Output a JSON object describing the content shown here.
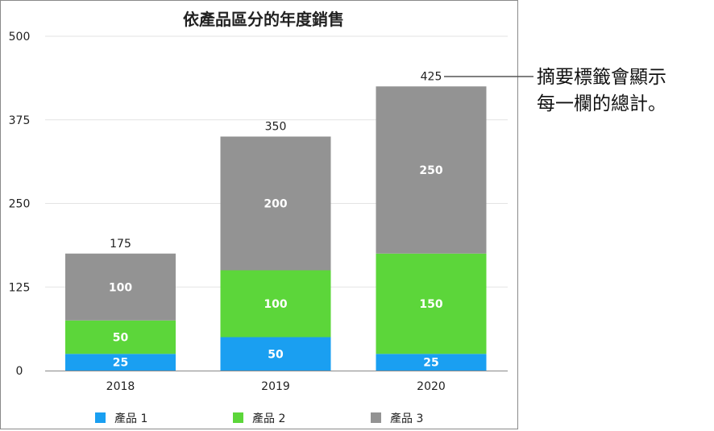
{
  "chart_data": {
    "type": "bar",
    "stacked": true,
    "title": "依產品區分的年度銷售",
    "xlabel": "",
    "ylabel": "",
    "categories": [
      "2018",
      "2019",
      "2020"
    ],
    "series": [
      {
        "name": "產品 1",
        "color": "#1a9ff1",
        "values": [
          25,
          50,
          25
        ]
      },
      {
        "name": "產品 2",
        "color": "#5cd63a",
        "values": [
          50,
          100,
          150
        ]
      },
      {
        "name": "產品 3",
        "color": "#939393",
        "values": [
          100,
          200,
          250
        ]
      }
    ],
    "totals": [
      175,
      350,
      425
    ],
    "ylim": [
      0,
      500
    ],
    "yticks": [
      "0",
      "125",
      "250",
      "375",
      "500"
    ],
    "grid": true,
    "legend_position": "bottom"
  },
  "callout": {
    "lines": [
      "摘要標籤會顯示",
      "每一欄的總計。"
    ]
  }
}
